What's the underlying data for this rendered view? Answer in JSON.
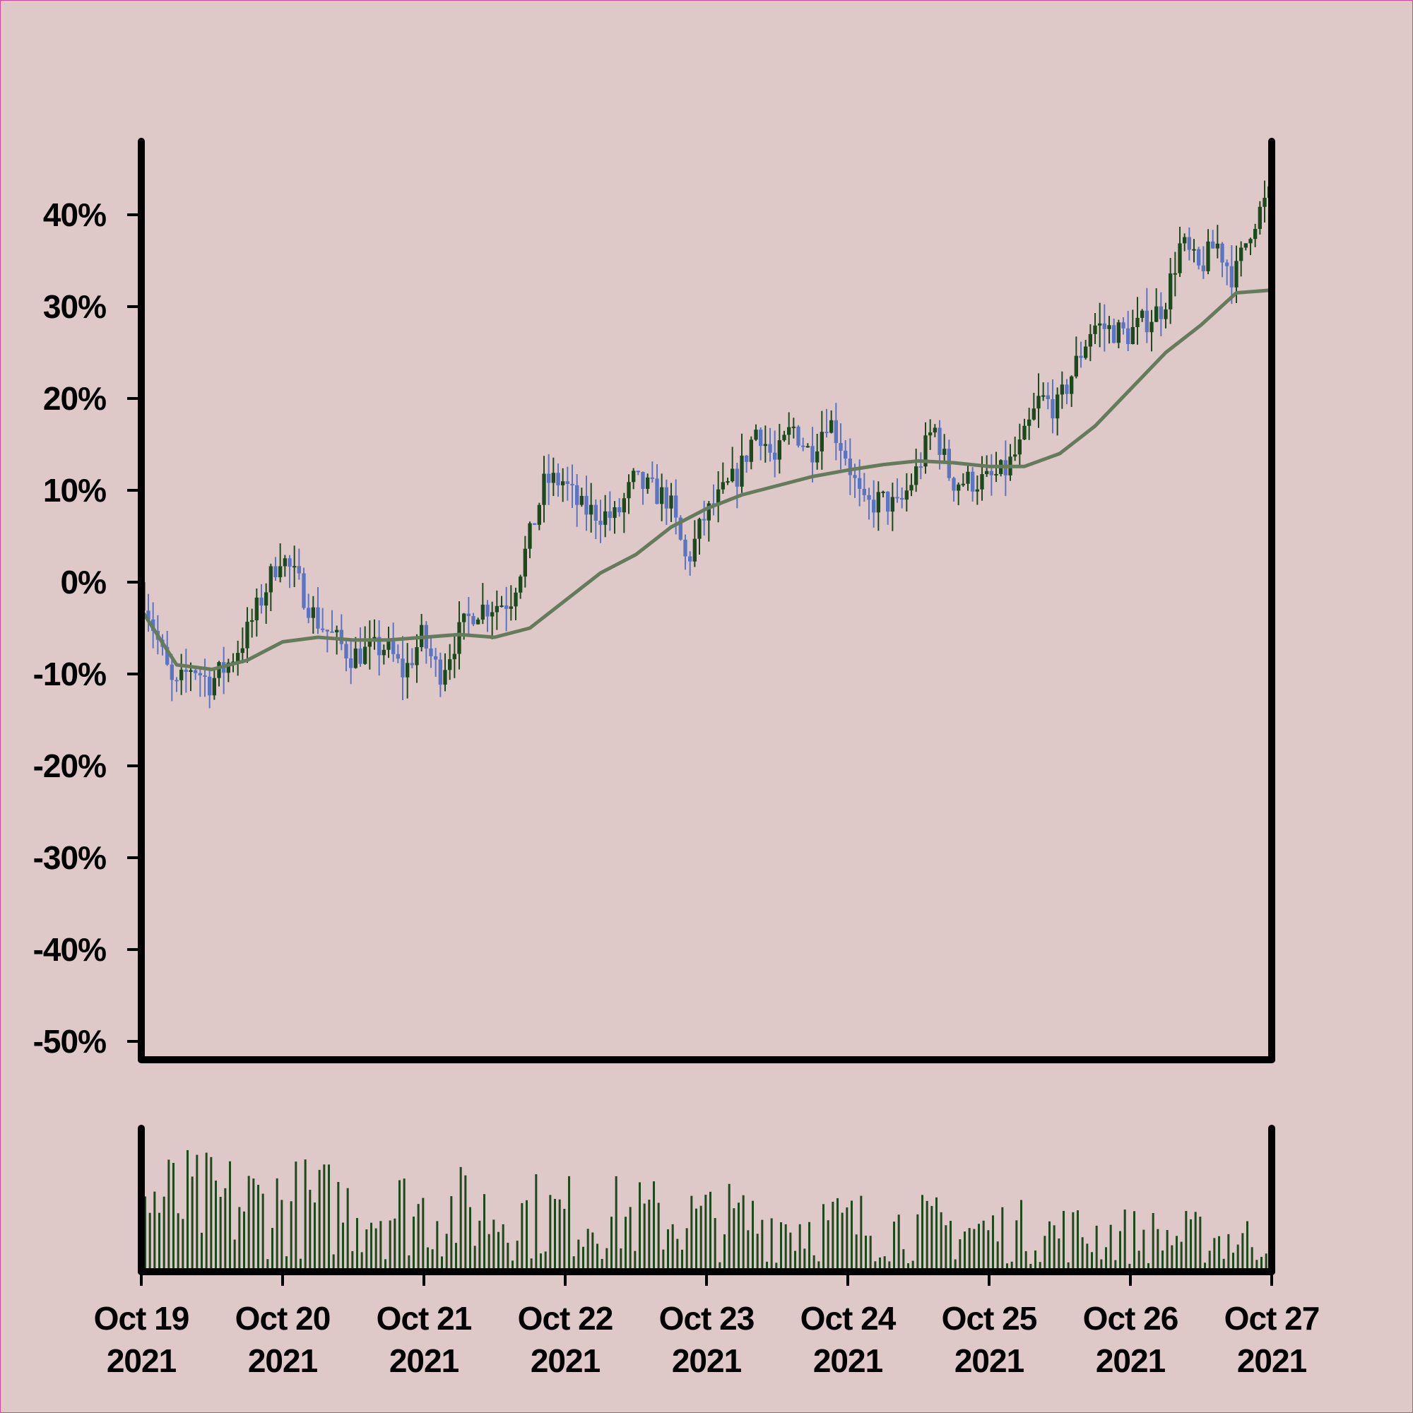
{
  "chart_data": [
    {
      "type": "candlestick",
      "title": "",
      "xlabel": "",
      "ylabel": "",
      "grid": false,
      "legend": "none",
      "x_range": [
        "2021-10-19",
        "2021-10-27"
      ],
      "ylim": [
        -52,
        48
      ],
      "y_ticks": [
        {
          "value": 40,
          "label": "40%"
        },
        {
          "value": 30,
          "label": "30%"
        },
        {
          "value": 20,
          "label": "20%"
        },
        {
          "value": 10,
          "label": "10%"
        },
        {
          "value": 0,
          "label": "0%"
        },
        {
          "value": -10,
          "label": "-10%"
        },
        {
          "value": -20,
          "label": "-20%"
        },
        {
          "value": -30,
          "label": "-30%"
        },
        {
          "value": -40,
          "label": "-40%"
        },
        {
          "value": -50,
          "label": "-50%"
        }
      ],
      "x_ticks": [
        {
          "date": "2021-10-19",
          "line1": "Oct 19",
          "line2": "2021"
        },
        {
          "date": "2021-10-20",
          "line1": "Oct 20",
          "line2": "2021"
        },
        {
          "date": "2021-10-21",
          "line1": "Oct 21",
          "line2": "2021"
        },
        {
          "date": "2021-10-22",
          "line1": "Oct 22",
          "line2": "2021"
        },
        {
          "date": "2021-10-23",
          "line1": "Oct 23",
          "line2": "2021"
        },
        {
          "date": "2021-10-24",
          "line1": "Oct 24",
          "line2": "2021"
        },
        {
          "date": "2021-10-25",
          "line1": "Oct 25",
          "line2": "2021"
        },
        {
          "date": "2021-10-26",
          "line1": "Oct 26",
          "line2": "2021"
        },
        {
          "date": "2021-10-27",
          "line1": "Oct 27",
          "line2": "2021"
        }
      ],
      "price_path": [
        {
          "date": "2021-10-19 00:00",
          "value": 0
        },
        {
          "date": "2021-10-19 06:00",
          "value": -12
        },
        {
          "date": "2021-10-19 09:00",
          "value": -9
        },
        {
          "date": "2021-10-19 12:00",
          "value": -11
        },
        {
          "date": "2021-10-19 15:00",
          "value": -9
        },
        {
          "date": "2021-10-19 18:00",
          "value": -6
        },
        {
          "date": "2021-10-20 00:00",
          "value": 3
        },
        {
          "date": "2021-10-20 03:00",
          "value": 0
        },
        {
          "date": "2021-10-20 06:00",
          "value": -4
        },
        {
          "date": "2021-10-20 09:00",
          "value": -6
        },
        {
          "date": "2021-10-20 12:00",
          "value": -8
        },
        {
          "date": "2021-10-20 18:00",
          "value": -7
        },
        {
          "date": "2021-10-20 21:00",
          "value": -10
        },
        {
          "date": "2021-10-21 00:00",
          "value": -6
        },
        {
          "date": "2021-10-21 03:00",
          "value": -10
        },
        {
          "date": "2021-10-21 06:00",
          "value": -6
        },
        {
          "date": "2021-10-21 09:00",
          "value": -3
        },
        {
          "date": "2021-10-21 15:00",
          "value": -2
        },
        {
          "date": "2021-10-21 18:00",
          "value": 4
        },
        {
          "date": "2021-10-21 21:00",
          "value": 11
        },
        {
          "date": "2021-10-22 00:00",
          "value": 11
        },
        {
          "date": "2021-10-22 03:00",
          "value": 8
        },
        {
          "date": "2021-10-22 09:00",
          "value": 7
        },
        {
          "date": "2021-10-22 12:00",
          "value": 11
        },
        {
          "date": "2021-10-22 18:00",
          "value": 9
        },
        {
          "date": "2021-10-22 21:00",
          "value": 2
        },
        {
          "date": "2021-10-23 00:00",
          "value": 7
        },
        {
          "date": "2021-10-23 06:00",
          "value": 12
        },
        {
          "date": "2021-10-23 09:00",
          "value": 17
        },
        {
          "date": "2021-10-23 12:00",
          "value": 13
        },
        {
          "date": "2021-10-23 15:00",
          "value": 17
        },
        {
          "date": "2021-10-23 18:00",
          "value": 14
        },
        {
          "date": "2021-10-23 21:00",
          "value": 18
        },
        {
          "date": "2021-10-24 00:00",
          "value": 14
        },
        {
          "date": "2021-10-24 03:00",
          "value": 8
        },
        {
          "date": "2021-10-24 06:00",
          "value": 9
        },
        {
          "date": "2021-10-24 09:00",
          "value": 8
        },
        {
          "date": "2021-10-24 12:00",
          "value": 12
        },
        {
          "date": "2021-10-24 15:00",
          "value": 17
        },
        {
          "date": "2021-10-24 18:00",
          "value": 11
        },
        {
          "date": "2021-10-25 00:00",
          "value": 11
        },
        {
          "date": "2021-10-25 03:00",
          "value": 12
        },
        {
          "date": "2021-10-25 06:00",
          "value": 15
        },
        {
          "date": "2021-10-25 09:00",
          "value": 20
        },
        {
          "date": "2021-10-25 12:00",
          "value": 19
        },
        {
          "date": "2021-10-25 18:00",
          "value": 28
        },
        {
          "date": "2021-10-26 00:00",
          "value": 27
        },
        {
          "date": "2021-10-26 06:00",
          "value": 30
        },
        {
          "date": "2021-10-26 09:00",
          "value": 37
        },
        {
          "date": "2021-10-26 12:00",
          "value": 34
        },
        {
          "date": "2021-10-26 15:00",
          "value": 37
        },
        {
          "date": "2021-10-26 18:00",
          "value": 33
        },
        {
          "date": "2021-10-26 21:00",
          "value": 39
        },
        {
          "date": "2021-10-27 00:00",
          "value": 42
        }
      ],
      "moving_average": [
        {
          "date": "2021-10-19 00:00",
          "value": -3
        },
        {
          "date": "2021-10-19 06:00",
          "value": -9
        },
        {
          "date": "2021-10-19 12:00",
          "value": -9.5
        },
        {
          "date": "2021-10-19 18:00",
          "value": -8.5
        },
        {
          "date": "2021-10-20 00:00",
          "value": -6.5
        },
        {
          "date": "2021-10-20 06:00",
          "value": -6
        },
        {
          "date": "2021-10-20 12:00",
          "value": -6.3
        },
        {
          "date": "2021-10-20 18:00",
          "value": -6.3
        },
        {
          "date": "2021-10-21 00:00",
          "value": -6
        },
        {
          "date": "2021-10-21 06:00",
          "value": -5.7
        },
        {
          "date": "2021-10-21 12:00",
          "value": -6
        },
        {
          "date": "2021-10-21 18:00",
          "value": -5
        },
        {
          "date": "2021-10-22 00:00",
          "value": -2
        },
        {
          "date": "2021-10-22 06:00",
          "value": 1
        },
        {
          "date": "2021-10-22 12:00",
          "value": 3
        },
        {
          "date": "2021-10-22 18:00",
          "value": 6
        },
        {
          "date": "2021-10-23 00:00",
          "value": 8
        },
        {
          "date": "2021-10-23 06:00",
          "value": 9.5
        },
        {
          "date": "2021-10-23 12:00",
          "value": 10.5
        },
        {
          "date": "2021-10-23 18:00",
          "value": 11.5
        },
        {
          "date": "2021-10-24 00:00",
          "value": 12.2
        },
        {
          "date": "2021-10-24 06:00",
          "value": 12.8
        },
        {
          "date": "2021-10-24 12:00",
          "value": 13.2
        },
        {
          "date": "2021-10-24 18:00",
          "value": 13
        },
        {
          "date": "2021-10-25 00:00",
          "value": 12.6
        },
        {
          "date": "2021-10-25 06:00",
          "value": 12.6
        },
        {
          "date": "2021-10-25 12:00",
          "value": 14
        },
        {
          "date": "2021-10-25 18:00",
          "value": 17
        },
        {
          "date": "2021-10-26 00:00",
          "value": 21
        },
        {
          "date": "2021-10-26 06:00",
          "value": 25
        },
        {
          "date": "2021-10-26 12:00",
          "value": 28
        },
        {
          "date": "2021-10-26 18:00",
          "value": 31.5
        },
        {
          "date": "2021-10-27 00:00",
          "value": 31.8
        }
      ],
      "candle_count": 240,
      "colors": {
        "up": "#1c4a1c",
        "down": "#5b74c4",
        "moving_average": "#647c5c",
        "axis": "#000000",
        "background": "#dec8c8"
      }
    },
    {
      "type": "bar",
      "title": "",
      "xlabel": "",
      "ylabel": "",
      "series_shape": "random volume bars, larger early in the week, smaller toward Oct 27",
      "bar_count": 240,
      "colors": {
        "bar": "#1c4a1c"
      }
    }
  ]
}
